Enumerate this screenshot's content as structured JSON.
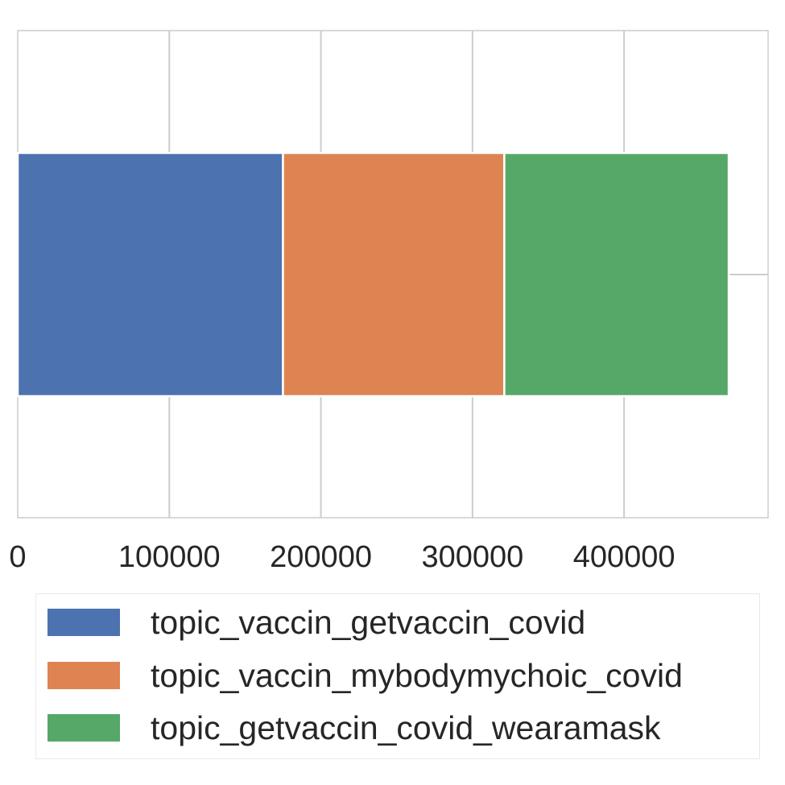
{
  "chart_data": {
    "type": "bar",
    "orientation": "horizontal",
    "stacked": true,
    "categories": [
      ""
    ],
    "series": [
      {
        "name": "topic_vaccin_getvaccin_covid",
        "values": [
          175000
        ],
        "color": "#4c72b0"
      },
      {
        "name": "topic_vaccin_mybodymychoic_covid",
        "values": [
          146000
        ],
        "color": "#dd8452"
      },
      {
        "name": "topic_getvaccin_covid_wearamask",
        "values": [
          148000
        ],
        "color": "#55a868"
      }
    ],
    "xticks": [
      0,
      100000,
      200000,
      300000,
      400000
    ],
    "xtick_labels": [
      "0",
      "100000",
      "200000",
      "300000",
      "400000"
    ],
    "xlim": [
      0,
      495000
    ],
    "title": "",
    "xlabel": "",
    "ylabel": "",
    "grid": true,
    "legend_position": "bottom"
  }
}
